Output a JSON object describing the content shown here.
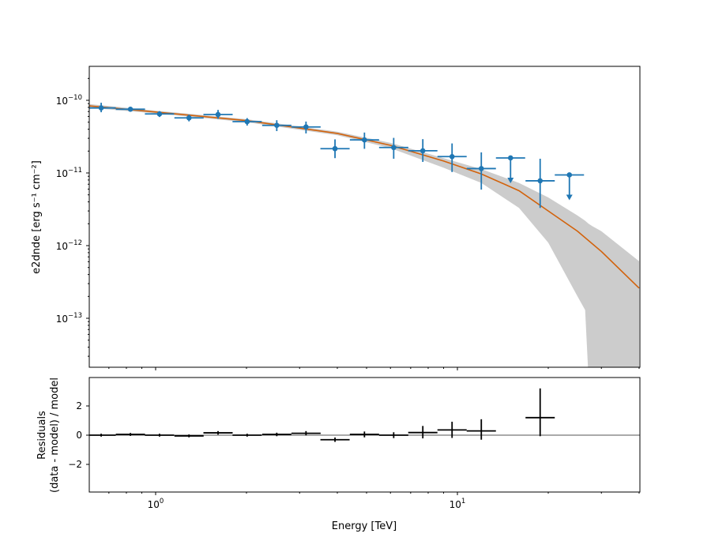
{
  "chart_data": [
    {
      "type": "scatter",
      "panel": "flux points with model",
      "xscale": "log",
      "yscale": "log",
      "xlim": [
        0.6,
        40
      ],
      "ylim": [
        2e-14,
        3e-10
      ],
      "xlabel": "",
      "ylabel": "e2dnde [erg s⁻¹ cm⁻²]",
      "yticks": [
        {
          "value": 1e-10,
          "base": "10",
          "exp": "−10"
        },
        {
          "value": 1e-11,
          "base": "10",
          "exp": "−11"
        },
        {
          "value": 1e-12,
          "base": "10",
          "exp": "−12"
        },
        {
          "value": 1e-13,
          "base": "10",
          "exp": "−13"
        }
      ],
      "grid": false,
      "colors": {
        "points": "#1f77b4",
        "model": "#d2620b",
        "band": "#cccccc"
      },
      "points": {
        "energy": [
          0.66,
          0.825,
          1.03,
          1.29,
          1.61,
          2.01,
          2.52,
          3.15,
          3.93,
          4.92,
          6.15,
          7.68,
          9.6,
          12.0,
          15.0,
          18.8,
          23.5
        ],
        "e2dnde": [
          7.85e-11,
          7.53e-11,
          6.49e-11,
          5.73e-11,
          6.37e-11,
          5.09e-11,
          4.52e-11,
          4.3e-11,
          2.16e-11,
          2.85e-11,
          2.24e-11,
          2.02e-11,
          1.68e-11,
          1.15e-11,
          1.61e-11,
          7.8e-12,
          9.4e-12
        ],
        "err_hi": [
          1.4e-11,
          5e-12,
          6e-12,
          6e-12,
          1e-11,
          6e-12,
          8e-12,
          8e-12,
          7.4e-12,
          7.5e-12,
          8e-12,
          9e-12,
          8.7e-12,
          7.7e-12,
          0,
          7.9e-12,
          0
        ],
        "err_lo": [
          1e-11,
          5e-12,
          6e-12,
          6e-12,
          8e-12,
          6e-12,
          7.5e-12,
          8e-12,
          5.6e-12,
          7e-12,
          6.7e-12,
          6e-12,
          6.5e-12,
          5.6e-12,
          0,
          4.5e-12,
          0
        ],
        "upper_limit": [
          false,
          false,
          false,
          false,
          false,
          false,
          false,
          false,
          false,
          false,
          false,
          false,
          false,
          false,
          true,
          false,
          true
        ],
        "bin_factor": 1.118
      },
      "model": {
        "energy": [
          0.6,
          1,
          2,
          4,
          6,
          9,
          12,
          16,
          20,
          25,
          30,
          40
        ],
        "e2dnde": [
          8.4e-11,
          6.9e-11,
          5.26e-11,
          3.5e-11,
          2.4e-11,
          1.46e-11,
          9.7e-12,
          5.7e-12,
          3e-12,
          1.58e-12,
          8.3e-13,
          2.6e-13
        ]
      },
      "band": {
        "energy": [
          0.6,
          1,
          2,
          4,
          6,
          9,
          12,
          16,
          20,
          25,
          26.5,
          27.2,
          28,
          30,
          40
        ],
        "upper": [
          8.9e-11,
          7.2e-11,
          5.5e-11,
          3.7e-11,
          2.6e-11,
          1.6e-11,
          1.13e-11,
          7.3e-12,
          4.6e-12,
          2.6e-12,
          2.2e-12,
          2e-12,
          1.85e-12,
          1.58e-12,
          6.1e-13
        ],
        "lower": [
          7.9e-11,
          6.6e-11,
          5e-11,
          3.3e-11,
          2.2e-11,
          1.18e-11,
          7.3e-12,
          3.3e-12,
          1.1e-12,
          2e-13,
          1.3e-13,
          1e-14,
          1e-16,
          1e-16,
          1e-16
        ]
      }
    },
    {
      "type": "scatter",
      "panel": "residuals",
      "xscale": "log",
      "xlim": [
        0.6,
        40
      ],
      "ylim": [
        -3.95,
        3.95
      ],
      "xlabel": "Energy [TeV]",
      "ylabel": [
        "Residuals",
        "(data - model) / model"
      ],
      "xticks": [
        {
          "value": 1,
          "base": "10",
          "exp": "0"
        },
        {
          "value": 10,
          "base": "10",
          "exp": "1"
        }
      ],
      "yticks": [
        {
          "value": -2,
          "label": "−2"
        },
        {
          "value": 0,
          "label": "0"
        },
        {
          "value": 2,
          "label": "2"
        }
      ],
      "grid": false,
      "colors": {
        "points": "#000000",
        "zero_line": "#555555"
      },
      "energy": [
        0.66,
        0.825,
        1.03,
        1.29,
        1.61,
        2.01,
        2.52,
        3.15,
        3.93,
        4.92,
        6.15,
        7.68,
        9.6,
        12.0,
        18.8
      ],
      "residual": [
        0.0,
        0.05,
        0.0,
        -0.05,
        0.16,
        0.0,
        0.05,
        0.13,
        -0.31,
        0.05,
        0.0,
        0.18,
        0.36,
        0.29,
        1.2
      ],
      "err_hi": [
        0.1,
        0.1,
        0.1,
        0.1,
        0.12,
        0.1,
        0.12,
        0.15,
        0.15,
        0.2,
        0.2,
        0.45,
        0.56,
        0.8,
        2.0
      ],
      "err_lo": [
        0.1,
        0.1,
        0.1,
        0.1,
        0.12,
        0.1,
        0.12,
        0.15,
        0.15,
        0.2,
        0.2,
        0.4,
        0.55,
        0.6,
        1.27
      ],
      "bin_factor": 1.118
    }
  ]
}
